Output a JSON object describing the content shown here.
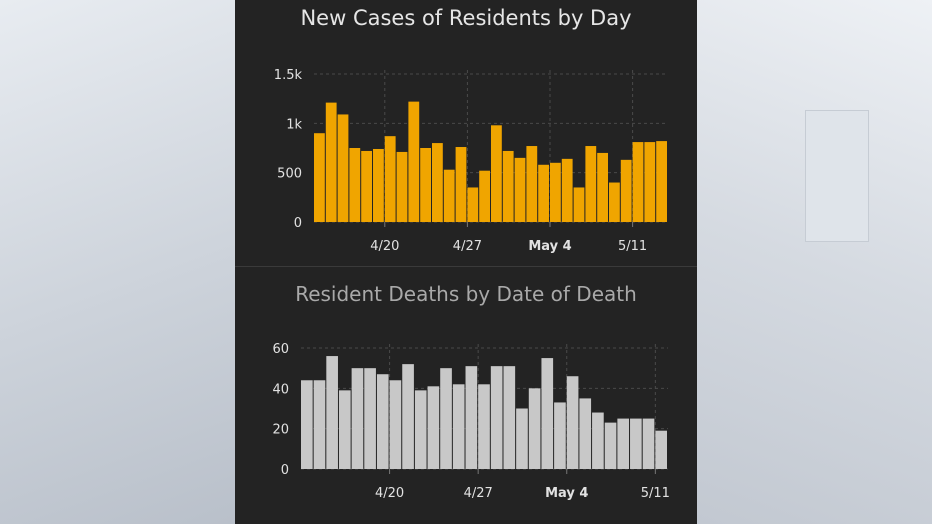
{
  "chart_data": [
    {
      "type": "bar",
      "title": "New Cases of Residents by Day",
      "color": "#f0a500",
      "ylim": [
        0,
        1500
      ],
      "yticks": [
        {
          "value": 0,
          "label": "0"
        },
        {
          "value": 500,
          "label": "500"
        },
        {
          "value": 1000,
          "label": "1k"
        },
        {
          "value": 1500,
          "label": "1.5k"
        }
      ],
      "xticks": [
        {
          "index": 6,
          "label": "4/20",
          "bold": false
        },
        {
          "index": 13,
          "label": "4/27",
          "bold": false
        },
        {
          "index": 20,
          "label": "May 4",
          "bold": true
        },
        {
          "index": 27,
          "label": "5/11",
          "bold": false
        }
      ],
      "grid": true,
      "values": [
        900,
        1210,
        1090,
        750,
        720,
        740,
        870,
        710,
        1220,
        750,
        800,
        530,
        760,
        350,
        520,
        980,
        720,
        650,
        770,
        580,
        600,
        640,
        350,
        770,
        700,
        400,
        630,
        810,
        810,
        820
      ]
    },
    {
      "type": "bar",
      "title": "Resident Deaths by Date of Death",
      "color": "#c8c8c8",
      "ylim": [
        0,
        60
      ],
      "yticks": [
        {
          "value": 0,
          "label": "0"
        },
        {
          "value": 20,
          "label": "20"
        },
        {
          "value": 40,
          "label": "40"
        },
        {
          "value": 60,
          "label": "60"
        }
      ],
      "xticks": [
        {
          "index": 7,
          "label": "4/20",
          "bold": false
        },
        {
          "index": 14,
          "label": "4/27",
          "bold": false
        },
        {
          "index": 21,
          "label": "May 4",
          "bold": true
        },
        {
          "index": 28,
          "label": "5/11",
          "bold": false
        }
      ],
      "grid": true,
      "values": [
        44,
        44,
        56,
        39,
        50,
        50,
        47,
        44,
        52,
        39,
        41,
        50,
        42,
        51,
        42,
        51,
        51,
        30,
        40,
        55,
        33,
        46,
        35,
        28,
        23,
        25,
        25,
        25,
        19
      ]
    }
  ]
}
